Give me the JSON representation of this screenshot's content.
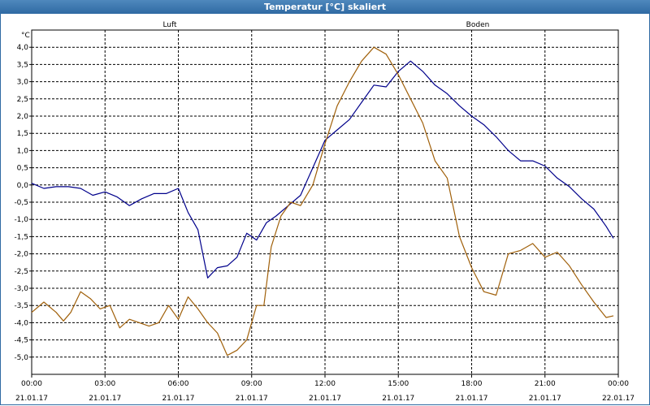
{
  "window": {
    "title": "Temperatur [°C] skaliert"
  },
  "colors": {
    "luft": "#00008b",
    "boden": "#a0600a",
    "grid": "#000000",
    "title_bg": "#2f6aa3"
  },
  "chart_data": {
    "type": "line",
    "title": "Temperatur [°C] skaliert",
    "ylabel": "°C",
    "ylim": [
      -5.5,
      4.5
    ],
    "yticks": [
      4.0,
      3.5,
      3.0,
      2.5,
      2.0,
      1.5,
      1.0,
      0.5,
      0.0,
      -0.5,
      -1.0,
      -1.5,
      -2.0,
      -2.5,
      -3.0,
      -3.5,
      -4.0,
      -4.5,
      -5.0
    ],
    "ytick_labels": [
      "4,0",
      "3,5",
      "3,0",
      "2,5",
      "2,0",
      "1,5",
      "1,0",
      "0,5",
      "0,0",
      "-0,5",
      "-1,0",
      "-1,5",
      "-2,0",
      "-2,5",
      "-3,0",
      "-3,5",
      "-4,0",
      "-4,5",
      "-5,0"
    ],
    "xlim": [
      0,
      24
    ],
    "xticks": [
      0,
      3,
      6,
      9,
      12,
      15,
      18,
      21,
      24
    ],
    "xtick_time_labels": [
      "00:00",
      "03:00",
      "06:00",
      "09:00",
      "12:00",
      "15:00",
      "18:00",
      "21:00",
      "00:00"
    ],
    "xtick_date_labels": [
      "21.01.17",
      "21.01.17",
      "21.01.17",
      "21.01.17",
      "21.01.17",
      "21.01.17",
      "21.01.17",
      "21.01.17",
      "22.01.17"
    ],
    "grid": true,
    "series": [
      {
        "name": "Luft",
        "color": "#00008b",
        "x": [
          0,
          0.5,
          1,
          1.5,
          2,
          2.5,
          3,
          3.5,
          4,
          4.5,
          5,
          5.5,
          6,
          6.4,
          6.8,
          7.2,
          7.6,
          8,
          8.4,
          8.8,
          9.2,
          9.6,
          10,
          10.5,
          11,
          11.5,
          12,
          12.5,
          13,
          13.5,
          14,
          14.5,
          15,
          15.5,
          16,
          16.5,
          17,
          17.5,
          18,
          18.5,
          19,
          19.5,
          20,
          20.5,
          21,
          21.5,
          22,
          22.5,
          23,
          23.5,
          23.8
        ],
        "y": [
          0.05,
          -0.1,
          -0.05,
          -0.05,
          -0.1,
          -0.3,
          -0.2,
          -0.35,
          -0.6,
          -0.4,
          -0.25,
          -0.25,
          -0.1,
          -0.8,
          -1.3,
          -2.7,
          -2.4,
          -2.35,
          -2.1,
          -1.4,
          -1.6,
          -1.1,
          -0.9,
          -0.6,
          -0.3,
          0.5,
          1.3,
          1.6,
          1.9,
          2.4,
          2.9,
          2.85,
          3.3,
          3.6,
          3.3,
          2.9,
          2.65,
          2.3,
          2.0,
          1.75,
          1.4,
          1.0,
          0.7,
          0.7,
          0.55,
          0.2,
          -0.05,
          -0.4,
          -0.7,
          -1.2,
          -1.55
        ]
      },
      {
        "name": "Boden",
        "color": "#a0600a",
        "x": [
          0,
          0.5,
          1,
          1.3,
          1.6,
          2,
          2.4,
          2.8,
          3.2,
          3.6,
          4,
          4.4,
          4.8,
          5.2,
          5.6,
          6,
          6.4,
          6.8,
          7.2,
          7.6,
          8,
          8.4,
          8.8,
          9.2,
          9.5,
          9.8,
          10.2,
          10.6,
          11,
          11.5,
          12,
          12.5,
          13,
          13.5,
          14,
          14.5,
          15,
          15.5,
          16,
          16.5,
          17,
          17.5,
          18,
          18.5,
          19,
          19.5,
          20,
          20.5,
          21,
          21.5,
          22,
          22.5,
          23,
          23.5,
          23.8
        ],
        "y": [
          -3.7,
          -3.4,
          -3.7,
          -3.95,
          -3.7,
          -3.1,
          -3.3,
          -3.6,
          -3.5,
          -4.15,
          -3.9,
          -4.0,
          -4.1,
          -4.0,
          -3.5,
          -3.9,
          -3.25,
          -3.6,
          -4.0,
          -4.3,
          -4.95,
          -4.8,
          -4.5,
          -3.5,
          -3.5,
          -1.8,
          -0.9,
          -0.5,
          -0.6,
          0.0,
          1.2,
          2.3,
          3.0,
          3.6,
          4.0,
          3.8,
          3.2,
          2.5,
          1.8,
          0.7,
          0.2,
          -1.5,
          -2.4,
          -3.1,
          -3.2,
          -2.0,
          -1.9,
          -1.7,
          -2.1,
          -1.95,
          -2.35,
          -2.9,
          -3.4,
          -3.85,
          -3.8
        ]
      }
    ]
  }
}
